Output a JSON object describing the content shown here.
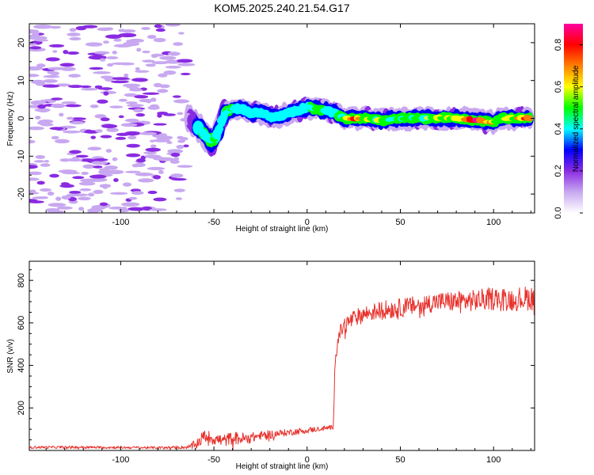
{
  "chart_data": [
    {
      "type": "heatmap",
      "title": "KOM5.2025.240.21.54.G17",
      "xlabel": "Height of straight line (km)",
      "ylabel": "Frequency (Hz)",
      "xlim": [
        -149,
        122
      ],
      "ylim": [
        -25,
        25
      ],
      "x_ticks": [
        -100,
        -50,
        0,
        50,
        100
      ],
      "y_ticks": [
        -20,
        -10,
        0,
        10,
        20
      ],
      "colorbar": {
        "label": "Normalized spectral amplitude",
        "range": [
          0.0,
          0.9
        ],
        "ticks": [
          "0.0",
          "0.2",
          "0.4",
          "0.6",
          "0.8"
        ],
        "colormap": [
          "#ffffff",
          "#c8a8f0",
          "#8a2be2",
          "#0000ff",
          "#00ffff",
          "#00ff00",
          "#ffff00",
          "#ff8000",
          "#ff0000",
          "#ff00a0"
        ]
      },
      "noise_region": {
        "x": [
          -149,
          -64
        ],
        "frequency_range": [
          -25,
          25
        ],
        "amplitude": 0.15
      },
      "signal_track": {
        "x": [
          -64,
          -60,
          -57,
          -54,
          -52,
          -50,
          -48,
          -46,
          -44,
          -40,
          -35,
          -30,
          -25,
          -20,
          -15,
          -10,
          -5,
          0,
          5,
          10,
          15,
          20,
          25,
          30,
          40,
          50,
          60,
          70,
          80,
          90,
          100,
          105,
          110,
          115,
          120
        ],
        "frequency": [
          0,
          -1.5,
          -3,
          -5,
          -6,
          -5.5,
          -4,
          -1,
          1.5,
          2.5,
          2.5,
          1.5,
          1.5,
          0.5,
          0.5,
          1.5,
          2,
          3,
          2.5,
          2,
          1.5,
          0,
          0,
          0,
          -0.5,
          0,
          0,
          0,
          0,
          -0.5,
          -1,
          0,
          0,
          0,
          0
        ],
        "peak_amplitude": [
          0.1,
          0.3,
          0.45,
          0.5,
          0.55,
          0.45,
          0.35,
          0.4,
          0.45,
          0.45,
          0.4,
          0.45,
          0.4,
          0.45,
          0.4,
          0.4,
          0.45,
          0.4,
          0.55,
          0.45,
          0.4,
          0.6,
          0.85,
          0.6,
          0.55,
          0.5,
          0.55,
          0.6,
          0.6,
          0.85,
          0.7,
          0.6,
          0.6,
          0.75,
          0.85
        ]
      }
    },
    {
      "type": "line",
      "xlabel": "Height of straight line (km)",
      "ylabel": "SNR (v/v)",
      "xlim": [
        -149,
        122
      ],
      "ylim": [
        0,
        890
      ],
      "x_ticks": [
        -100,
        -50,
        0,
        50,
        100
      ],
      "y_ticks": [
        200,
        400,
        600,
        800
      ],
      "series": [
        {
          "name": "SNR",
          "color": "#e8312c",
          "x": [
            -149,
            -120,
            -100,
            -80,
            -64,
            -60,
            -55,
            -50,
            -45,
            -40,
            -35,
            -30,
            -25,
            -20,
            -15,
            -10,
            -5,
            0,
            5,
            10,
            14,
            15,
            16,
            18,
            20,
            25,
            30,
            35,
            40,
            50,
            60,
            70,
            80,
            90,
            100,
            110,
            122
          ],
          "values": [
            15,
            15,
            14,
            13,
            15,
            25,
            70,
            55,
            45,
            60,
            55,
            60,
            70,
            75,
            80,
            85,
            90,
            95,
            100,
            105,
            110,
            420,
            500,
            560,
            590,
            620,
            640,
            650,
            660,
            670,
            685,
            700,
            700,
            705,
            715,
            710,
            720
          ],
          "noise_amplitude": [
            6,
            6,
            6,
            6,
            8,
            25,
            30,
            30,
            30,
            30,
            30,
            25,
            20,
            20,
            18,
            15,
            15,
            15,
            12,
            12,
            10,
            40,
            40,
            35,
            40,
            40,
            40,
            40,
            45,
            45,
            45,
            45,
            50,
            50,
            55,
            55,
            60
          ]
        }
      ]
    }
  ]
}
